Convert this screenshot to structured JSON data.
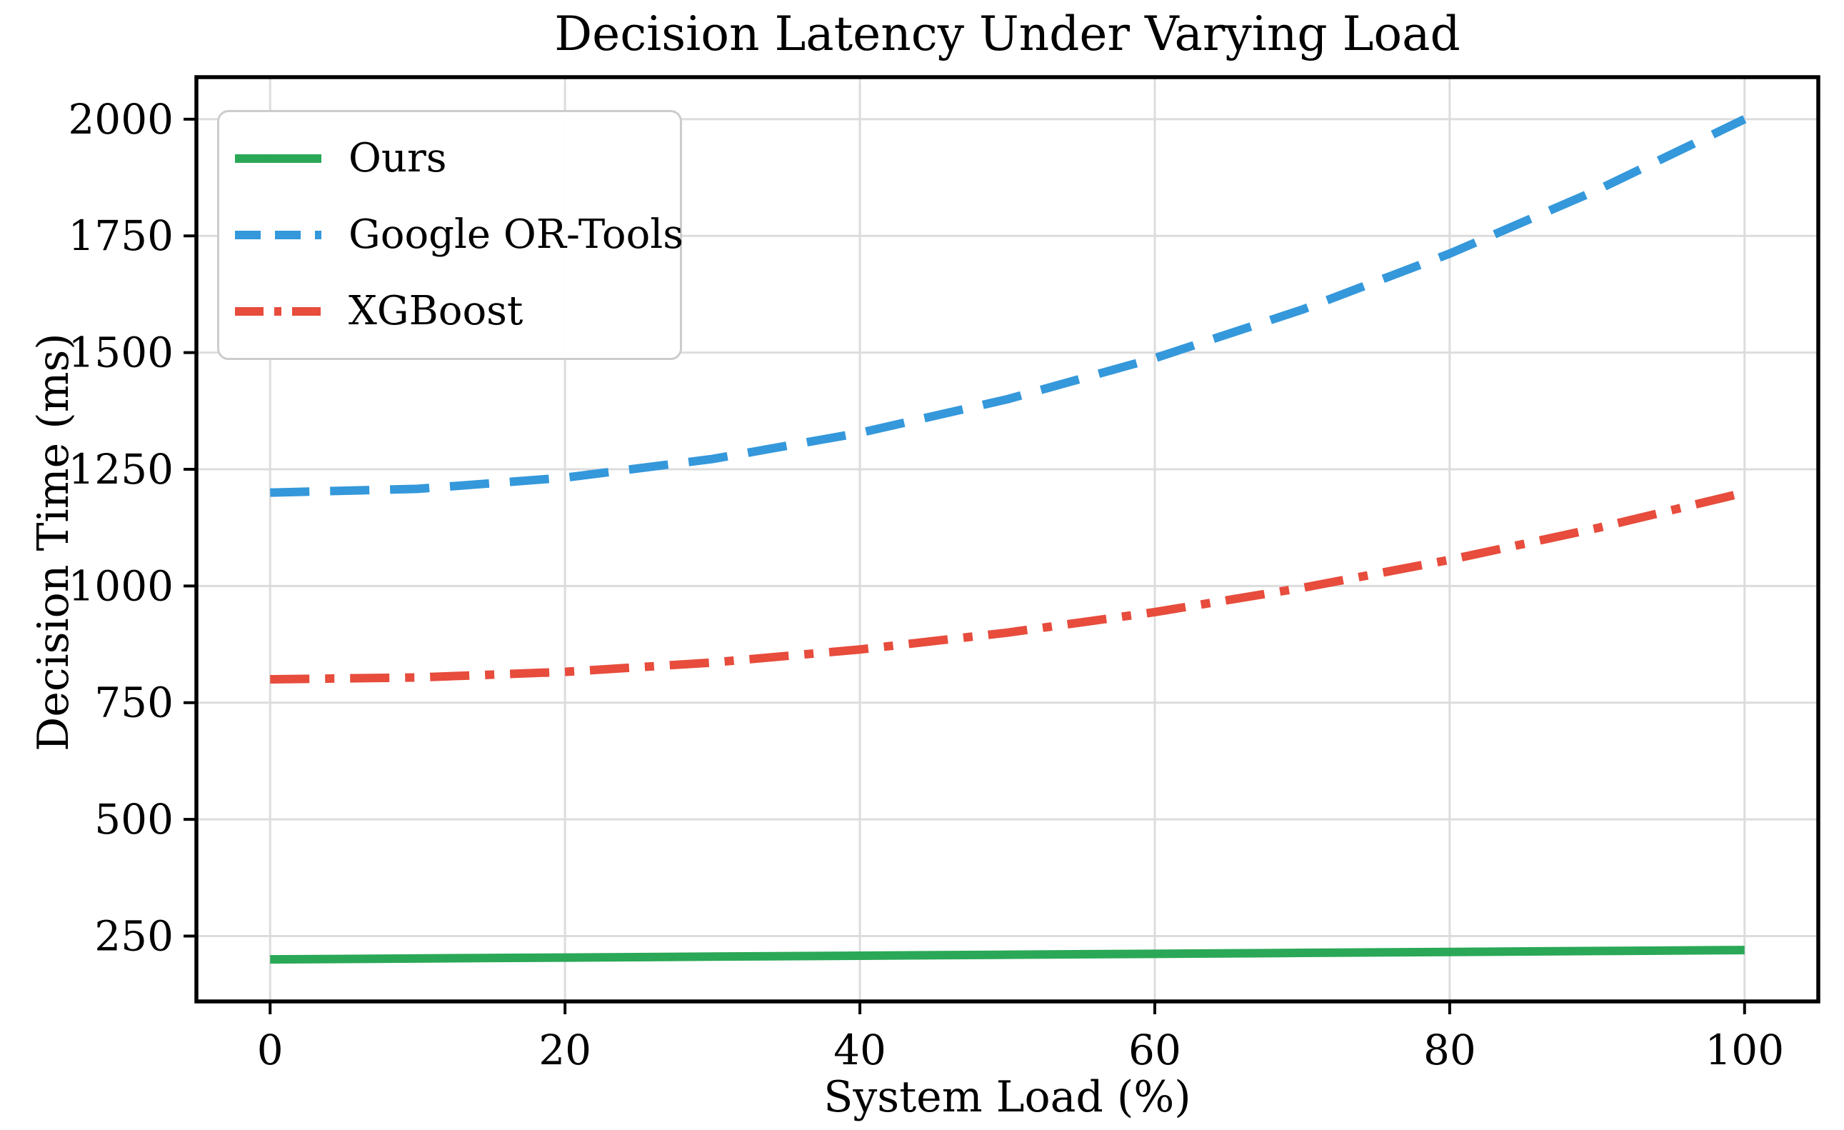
{
  "chart_data": {
    "type": "line",
    "title": "Decision Latency Under Varying Load",
    "xlabel": "System Load (%)",
    "ylabel": "Decision Time (ms)",
    "x": [
      0,
      10,
      20,
      30,
      40,
      50,
      60,
      70,
      80,
      90,
      100
    ],
    "series": [
      {
        "name": "Ours",
        "color": "#2aa857",
        "style": "solid",
        "values": [
          200,
          202,
          204,
          206,
          208,
          210,
          212,
          214,
          216,
          218,
          220
        ]
      },
      {
        "name": "Google OR-Tools",
        "color": "#3498db",
        "style": "dashed",
        "values": [
          1200,
          1208,
          1232,
          1272,
          1328,
          1400,
          1488,
          1592,
          1712,
          1848,
          2000
        ]
      },
      {
        "name": "XGBoost",
        "color": "#e74c3c",
        "style": "dashdot",
        "values": [
          800,
          804,
          816,
          836,
          864,
          900,
          944,
          996,
          1056,
          1124,
          1200
        ]
      }
    ],
    "xticks": [
      0,
      20,
      40,
      60,
      80,
      100
    ],
    "yticks": [
      250,
      500,
      750,
      1000,
      1250,
      1500,
      1750,
      2000
    ],
    "xlim": [
      -5,
      105
    ],
    "ylim": [
      110,
      2090
    ],
    "grid": true,
    "legend_position": "upper left"
  },
  "colors": {
    "grid": "#dcdcdc",
    "spine": "#000000",
    "text": "#000000",
    "legend_border": "#cccccc",
    "background": "#ffffff"
  }
}
